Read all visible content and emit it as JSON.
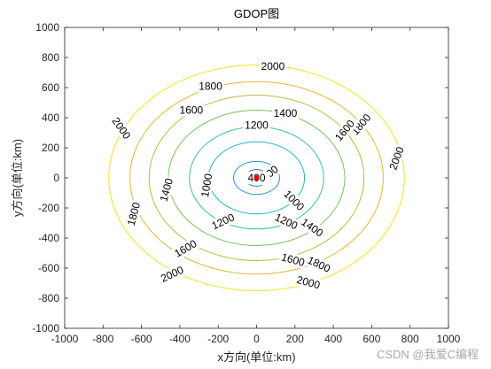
{
  "watermark": "CSDN @我爱C编程",
  "chart_data": {
    "type": "contour",
    "title": "GDOP图",
    "xlabel": "x方向(单位:km)",
    "ylabel": "y方向(单位:km)",
    "xlim": [
      -1000,
      1000
    ],
    "ylim": [
      -1000,
      1000
    ],
    "xticks": [
      -1000,
      -800,
      -600,
      -400,
      -200,
      0,
      200,
      400,
      600,
      800,
      1000
    ],
    "yticks": [
      -1000,
      -800,
      -600,
      -400,
      -200,
      0,
      200,
      400,
      600,
      800,
      1000
    ],
    "grid": false,
    "levels": [
      {
        "level": 400,
        "radius_x": 60,
        "radius_y": 55,
        "color": "#2f6fd6"
      },
      {
        "level": 800,
        "radius_x": 120,
        "radius_y": 110,
        "color": "#2596cf"
      },
      {
        "level": 1000,
        "radius_x": 250,
        "radius_y": 240,
        "color": "#1fb5c6"
      },
      {
        "level": 1200,
        "radius_x": 350,
        "radius_y": 340,
        "color": "#3fbf9f"
      },
      {
        "level": 1400,
        "radius_x": 460,
        "radius_y": 450,
        "color": "#7cc15a"
      },
      {
        "level": 1600,
        "radius_x": 560,
        "radius_y": 550,
        "color": "#b9bc38"
      },
      {
        "level": 1800,
        "radius_x": 660,
        "radius_y": 640,
        "color": "#e3b930"
      },
      {
        "level": 2000,
        "radius_x": 770,
        "radius_y": 750,
        "color": "#f5e11a"
      }
    ],
    "contour_labels": [
      {
        "text": "2000",
        "x": 85,
        "y": 740,
        "angle": 0
      },
      {
        "text": "1800",
        "x": -240,
        "y": 610,
        "angle": 0
      },
      {
        "text": "1600",
        "x": -340,
        "y": 450,
        "angle": 0
      },
      {
        "text": "1400",
        "x": 150,
        "y": 430,
        "angle": 0
      },
      {
        "text": "1200",
        "x": 0,
        "y": 350,
        "angle": 0
      },
      {
        "text": "1800",
        "x": 545,
        "y": 355,
        "angle": 50
      },
      {
        "text": "1600",
        "x": 460,
        "y": 315,
        "angle": 50
      },
      {
        "text": "2000",
        "x": -705,
        "y": 330,
        "angle": -55
      },
      {
        "text": "2000",
        "x": 730,
        "y": 130,
        "angle": 70
      },
      {
        "text": "800",
        "x": 70,
        "y": 30,
        "angle": 40
      },
      {
        "text": "400",
        "x": 0,
        "y": 0,
        "angle": 0
      },
      {
        "text": "1000",
        "x": -260,
        "y": -50,
        "angle": 80
      },
      {
        "text": "1400",
        "x": -470,
        "y": -80,
        "angle": 75
      },
      {
        "text": "1800",
        "x": -640,
        "y": -240,
        "angle": 75
      },
      {
        "text": "1000",
        "x": 195,
        "y": -150,
        "angle": -45
      },
      {
        "text": "1200",
        "x": -175,
        "y": -290,
        "angle": 25
      },
      {
        "text": "1200",
        "x": 155,
        "y": -290,
        "angle": -25
      },
      {
        "text": "1400",
        "x": 290,
        "y": -330,
        "angle": -35
      },
      {
        "text": "1600",
        "x": -370,
        "y": -470,
        "angle": 30
      },
      {
        "text": "1600",
        "x": 190,
        "y": -545,
        "angle": -15
      },
      {
        "text": "1800",
        "x": 325,
        "y": -575,
        "angle": -25
      },
      {
        "text": "2000",
        "x": -440,
        "y": -640,
        "angle": 25
      },
      {
        "text": "2000",
        "x": 270,
        "y": -695,
        "angle": -15
      }
    ],
    "markers": [
      {
        "x": 0,
        "y": 0,
        "color": "#ff0000"
      }
    ]
  }
}
